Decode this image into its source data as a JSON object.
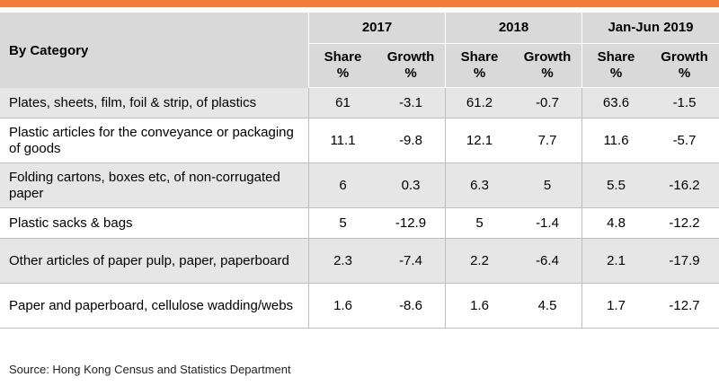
{
  "header": {
    "category_label": "By Category",
    "years": [
      "2017",
      "2018",
      "Jan-Jun 2019"
    ],
    "sub_share": "Share %",
    "sub_growth": "Growth %"
  },
  "rows": [
    {
      "category": "Plates, sheets, film, foil & strip, of plastics",
      "v": [
        "61",
        "-3.1",
        "61.2",
        "-0.7",
        "63.6",
        "-1.5"
      ]
    },
    {
      "category": "Plastic articles for the conveyance or packaging of goods",
      "v": [
        "11.1",
        "-9.8",
        "12.1",
        "7.7",
        "11.6",
        "-5.7"
      ]
    },
    {
      "category": "Folding cartons, boxes etc, of non-corrugated paper",
      "v": [
        "6",
        "0.3",
        "6.3",
        "5",
        "5.5",
        "-16.2"
      ]
    },
    {
      "category": "Plastic sacks & bags",
      "v": [
        "5",
        "-12.9",
        "5",
        "-1.4",
        "4.8",
        "-12.2"
      ]
    },
    {
      "category": "Other articles of paper pulp, paper, paperboard",
      "v": [
        "2.3",
        "-7.4",
        "2.2",
        "-6.4",
        "2.1",
        "-17.9"
      ]
    },
    {
      "category": "Paper and paperboard, cellulose wadding/webs",
      "v": [
        "1.6",
        "-8.6",
        "1.6",
        "4.5",
        "1.7",
        "-12.7"
      ]
    }
  ],
  "source": "Source: Hong Kong Census and Statistics Department",
  "colors": {
    "accent": "#f07d3a",
    "header_bg": "#d9d9d9"
  }
}
